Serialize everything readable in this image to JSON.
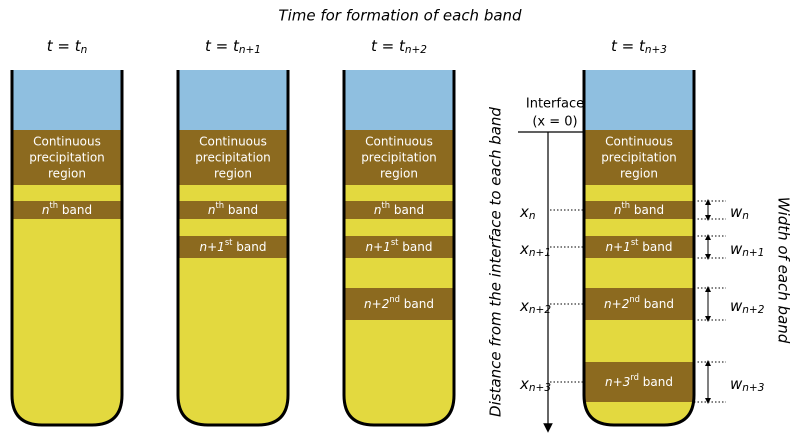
{
  "title": "Time for formation of each band",
  "tubes": [
    {
      "label": {
        "main": "t = t",
        "sub": "n"
      },
      "region": [
        "Continuous",
        "precipitation",
        "region"
      ],
      "bands": [
        {
          "pre": "n",
          "sup": "th",
          "post": " band"
        }
      ]
    },
    {
      "label": {
        "main": "t = t",
        "sub": "n+1"
      },
      "region": [
        "Continuous",
        "precipitation",
        "region"
      ],
      "bands": [
        {
          "pre": "n",
          "sup": "th",
          "post": " band"
        },
        {
          "pre": "n+1",
          "sup": "st",
          "post": " band"
        }
      ]
    },
    {
      "label": {
        "main": "t = t",
        "sub": "n+2"
      },
      "region": [
        "Continuous",
        "precipitation",
        "region"
      ],
      "bands": [
        {
          "pre": "n",
          "sup": "th",
          "post": " band"
        },
        {
          "pre": "n+1",
          "sup": "st",
          "post": " band"
        },
        {
          "pre": "n+2",
          "sup": "nd",
          "post": " band"
        }
      ]
    },
    {
      "label": {
        "main": "t = t",
        "sub": "n+3"
      },
      "region": [
        "Continuous",
        "precipitation",
        "region"
      ],
      "bands": [
        {
          "pre": "n",
          "sup": "th",
          "post": " band"
        },
        {
          "pre": "n+1",
          "sup": "st",
          "post": " band"
        },
        {
          "pre": "n+2",
          "sup": "nd",
          "post": " band"
        },
        {
          "pre": "n+3",
          "sup": "rd",
          "post": " band"
        }
      ]
    }
  ],
  "axis": {
    "interface": "Interface",
    "origin": "(x = 0)",
    "label": "Distance from the interface to each band",
    "positions": [
      {
        "main": "x",
        "sub": "n"
      },
      {
        "main": "x",
        "sub": "n+1"
      },
      {
        "main": "x",
        "sub": "n+2"
      },
      {
        "main": "x",
        "sub": "n+3"
      }
    ]
  },
  "widths": {
    "label": "Width of each band",
    "items": [
      {
        "main": "w",
        "sub": "n"
      },
      {
        "main": "w",
        "sub": "n+1"
      },
      {
        "main": "w",
        "sub": "n+2"
      },
      {
        "main": "w",
        "sub": "n+3"
      }
    ]
  }
}
